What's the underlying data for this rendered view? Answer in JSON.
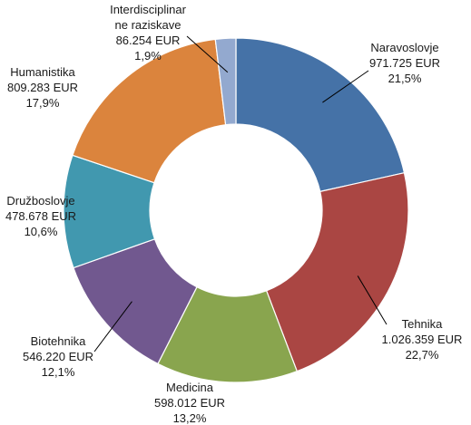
{
  "chart_data": {
    "type": "pie",
    "variant": "donut",
    "title": "",
    "legend": "none",
    "slices": [
      {
        "category": "Naravoslovje",
        "value": 971725,
        "value_label": "971.725 EUR",
        "percent_label": "21,5%",
        "color": "#4572A7"
      },
      {
        "category": "Tehnika",
        "value": 1026359,
        "value_label": "1.026.359 EUR",
        "percent_label": "22,7%",
        "color": "#AA4643"
      },
      {
        "category": "Medicina",
        "value": 598012,
        "value_label": "598.012 EUR",
        "percent_label": "13,2%",
        "color": "#89A54E"
      },
      {
        "category": "Biotehnika",
        "value": 546220,
        "value_label": "546.220 EUR",
        "percent_label": "12,1%",
        "color": "#71588F"
      },
      {
        "category": "Družboslovje",
        "value": 478678,
        "value_label": "478.678 EUR",
        "percent_label": "10,6%",
        "color": "#4198AF"
      },
      {
        "category": "Humanistika",
        "value": 809283,
        "value_label": "809.283 EUR",
        "percent_label": "17,9%",
        "color": "#DB843D"
      },
      {
        "category": "Interdisciplinarne raziskave",
        "category_lines": [
          "Interdisciplinar",
          "ne raziskave"
        ],
        "value": 86254,
        "value_label": "86.254 EUR",
        "percent_label": "1,9%",
        "color": "#93A9CF"
      }
    ]
  }
}
